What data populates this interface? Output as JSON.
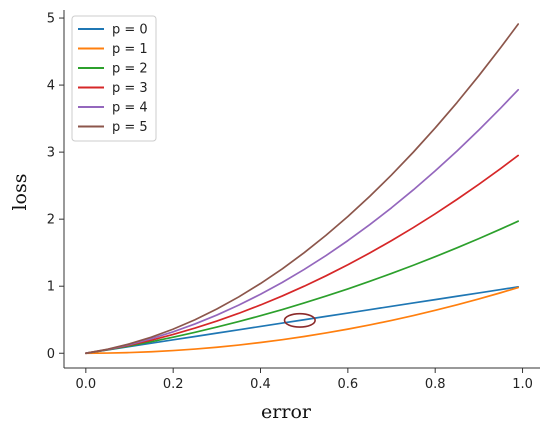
{
  "chart_data": {
    "type": "line",
    "xlabel": "error",
    "ylabel": "loss",
    "xlim": [
      -0.05,
      1.04
    ],
    "ylim": [
      -0.22,
      5.12
    ],
    "xticks": [
      "0.0",
      "0.2",
      "0.4",
      "0.6",
      "0.8",
      "1.0"
    ],
    "yticks": [
      "0",
      "1",
      "2",
      "3",
      "4",
      "5"
    ],
    "legend_position": "top-left",
    "grid": false,
    "x": [
      0.0,
      0.05,
      0.1,
      0.15,
      0.2,
      0.25,
      0.3,
      0.35,
      0.4,
      0.45,
      0.5,
      0.55,
      0.6,
      0.65,
      0.7,
      0.75,
      0.8,
      0.85,
      0.9,
      0.95,
      0.99
    ],
    "series": [
      {
        "name": "p = 0",
        "color": "#1f77b4",
        "values": [
          0.0,
          0.05,
          0.1,
          0.15,
          0.2,
          0.25,
          0.3,
          0.35,
          0.4,
          0.45,
          0.5,
          0.55,
          0.6,
          0.65,
          0.7,
          0.75,
          0.8,
          0.85,
          0.9,
          0.95,
          0.99
        ]
      },
      {
        "name": "p = 1",
        "color": "#ff7f0e",
        "values": [
          0.0,
          0.0025,
          0.01,
          0.0225,
          0.04,
          0.0625,
          0.09,
          0.1225,
          0.16,
          0.2025,
          0.25,
          0.3025,
          0.36,
          0.4225,
          0.49,
          0.5625,
          0.64,
          0.7225,
          0.81,
          0.9025,
          0.98
        ]
      },
      {
        "name": "p = 2",
        "color": "#2ca02c",
        "values": [
          0.0,
          0.0525,
          0.11,
          0.1725,
          0.24,
          0.3125,
          0.39,
          0.4725,
          0.56,
          0.6525,
          0.75,
          0.8525,
          0.96,
          1.0725,
          1.19,
          1.3125,
          1.44,
          1.5725,
          1.71,
          1.8525,
          1.97
        ]
      },
      {
        "name": "p = 3",
        "color": "#d62728",
        "values": [
          0.0,
          0.055,
          0.12,
          0.195,
          0.28,
          0.375,
          0.48,
          0.595,
          0.72,
          0.855,
          1.0,
          1.155,
          1.32,
          1.495,
          1.68,
          1.875,
          2.08,
          2.295,
          2.52,
          2.755,
          2.95
        ]
      },
      {
        "name": "p = 4",
        "color": "#9467bd",
        "values": [
          0.0,
          0.0575,
          0.13,
          0.2175,
          0.32,
          0.4375,
          0.57,
          0.7175,
          0.88,
          1.0575,
          1.25,
          1.4575,
          1.68,
          1.9175,
          2.17,
          2.4375,
          2.72,
          3.0175,
          3.33,
          3.6575,
          3.93
        ]
      },
      {
        "name": "p = 5",
        "color": "#8c564b",
        "values": [
          0.0,
          0.06,
          0.14,
          0.24,
          0.36,
          0.5,
          0.66,
          0.84,
          1.04,
          1.26,
          1.5,
          1.76,
          2.04,
          2.34,
          2.66,
          3.0,
          3.36,
          3.74,
          4.14,
          4.56,
          4.91
        ]
      }
    ],
    "annotations": [
      {
        "type": "ellipse",
        "x": 0.49,
        "y": 0.49,
        "rx": 0.035,
        "ry": 0.1,
        "color": "#8b2a2a"
      }
    ]
  }
}
